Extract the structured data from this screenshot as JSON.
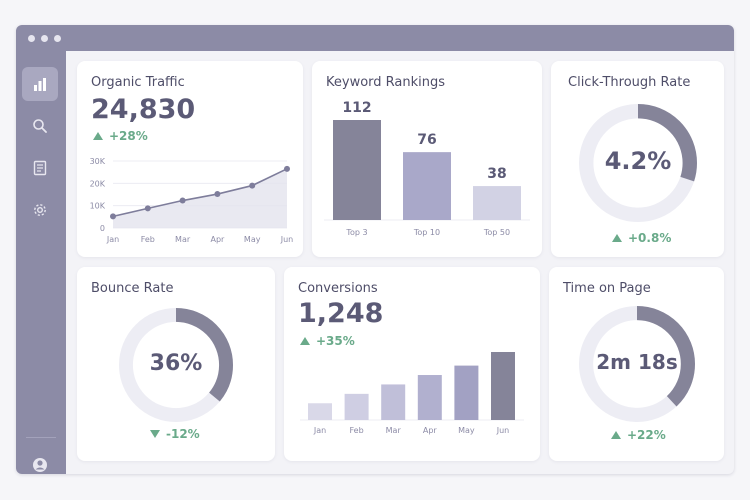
{
  "colors": {
    "frame": "#8c8ba6",
    "accent_dark": "#858499",
    "accent_mid": "#a9a8c9",
    "accent_light": "#d2d2e4",
    "positive": "#6aaa8a"
  },
  "sidebar": {
    "items": [
      {
        "icon": "bar-chart-icon",
        "active": true
      },
      {
        "icon": "search-icon",
        "active": false
      },
      {
        "icon": "document-icon",
        "active": false
      },
      {
        "icon": "gear-icon",
        "active": false
      }
    ],
    "footer_icon": "user-avatar-icon"
  },
  "cards": {
    "organic_traffic": {
      "title": "Organic Traffic",
      "value": "24,830",
      "delta": "+28%"
    },
    "keyword_rankings": {
      "title": "Keyword Rankings"
    },
    "ctr": {
      "title": "Click-Through Rate",
      "value": "4.2%",
      "delta": "+0.8%"
    },
    "bounce_rate": {
      "title": "Bounce Rate",
      "value": "36%",
      "delta": "-12%"
    },
    "conversions": {
      "title": "Conversions",
      "value": "1,248",
      "delta": "+35%"
    },
    "time_on_page": {
      "title": "Time on Page",
      "value": "2m 18s",
      "delta": "+22%"
    }
  },
  "chart_data": [
    {
      "type": "area",
      "categories": [
        "Jan",
        "Feb",
        "Mar",
        "Apr",
        "May",
        "Jun"
      ],
      "values": [
        5200,
        8800,
        12300,
        15200,
        19000,
        26500
      ],
      "ylim": [
        0,
        30000
      ],
      "yticks": [
        "0",
        "10K",
        "20K",
        "30K"
      ],
      "grid": true
    },
    {
      "type": "bar",
      "categories": [
        "Top 3",
        "Top 10",
        "Top 50"
      ],
      "values": [
        112,
        76,
        38
      ],
      "data_labels": [
        "112",
        "76",
        "38"
      ]
    },
    {
      "type": "pie",
      "title": "Click-Through Rate",
      "values": [
        0.3,
        0.7
      ]
    },
    {
      "type": "pie",
      "title": "Bounce Rate",
      "values": [
        0.36,
        0.64
      ]
    },
    {
      "type": "bar",
      "categories": [
        "Jan",
        "Feb",
        "Mar",
        "Apr",
        "May",
        "Jun"
      ],
      "values": [
        16,
        25,
        34,
        43,
        52,
        65
      ]
    },
    {
      "type": "pie",
      "title": "Time on Page",
      "values": [
        0.38,
        0.62
      ]
    }
  ]
}
